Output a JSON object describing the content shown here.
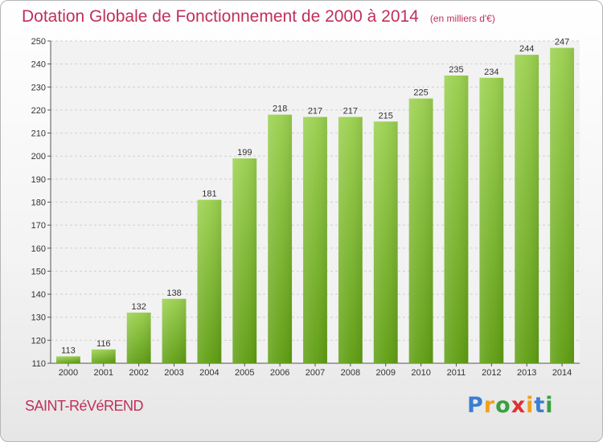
{
  "chart_data": {
    "type": "bar",
    "title": "Dotation Globale de Fonctionnement de 2000 à 2014",
    "subtitle": "(en milliers d'€)",
    "categories": [
      "2000",
      "2001",
      "2002",
      "2003",
      "2004",
      "2005",
      "2006",
      "2007",
      "2008",
      "2009",
      "2010",
      "2011",
      "2012",
      "2013",
      "2014"
    ],
    "values": [
      113,
      116,
      132,
      138,
      181,
      199,
      218,
      217,
      217,
      215,
      225,
      235,
      234,
      244,
      247
    ],
    "ylim": [
      110,
      250
    ],
    "yticks": [
      110,
      120,
      130,
      140,
      150,
      160,
      170,
      180,
      190,
      200,
      210,
      220,
      230,
      240,
      250
    ],
    "grid": true,
    "bar_color": "#7fbf2e"
  },
  "commune": "SAINT-RéVéREND",
  "logo": {
    "letters": [
      "P",
      "r",
      "o",
      "x",
      "i",
      "t",
      "i"
    ],
    "colors": [
      "#3a7fd0",
      "#f0a020",
      "#3aa040",
      "#e03030",
      "#f0a020",
      "#3a7fd0",
      "#3aa040"
    ]
  }
}
